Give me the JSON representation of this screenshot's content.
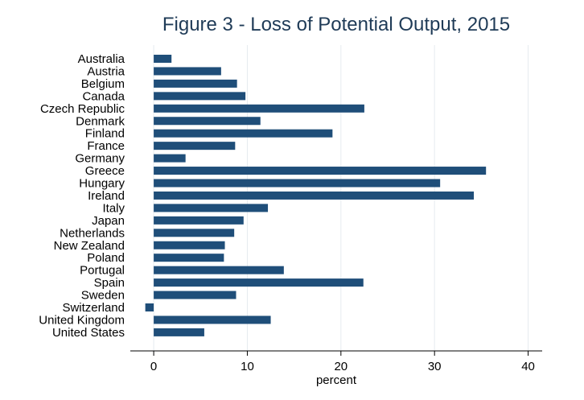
{
  "chart_data": {
    "type": "bar",
    "orientation": "horizontal",
    "title": "Figure 3 - Loss of Potential Output, 2015",
    "xlabel": "percent",
    "ylabel": "",
    "xlim": [
      -2.5,
      41.5
    ],
    "xticks": [
      0,
      10,
      20,
      30,
      40
    ],
    "grid": "vertical",
    "bar_color": "#1f4e79",
    "categories": [
      "Australia",
      "Austria",
      "Belgium",
      "Canada",
      "Czech Republic",
      "Denmark",
      "Finland",
      "France",
      "Germany",
      "Greece",
      "Hungary",
      "Ireland",
      "Italy",
      "Japan",
      "Netherlands",
      "New Zealand",
      "Poland",
      "Portugal",
      "Spain",
      "Sweden",
      "Switzerland",
      "United Kingdom",
      "United States"
    ],
    "values": [
      1.9,
      7.2,
      8.9,
      9.8,
      22.5,
      11.4,
      19.1,
      8.7,
      3.4,
      35.5,
      30.6,
      34.2,
      12.2,
      9.6,
      8.6,
      7.6,
      7.5,
      13.9,
      22.4,
      8.8,
      -0.9,
      12.5,
      5.4
    ]
  }
}
